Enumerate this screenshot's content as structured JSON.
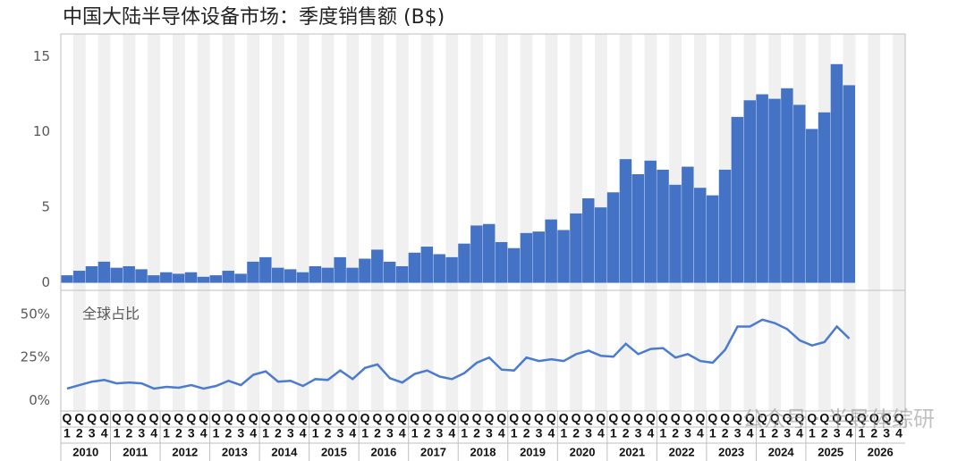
{
  "title": "中国大陆半导体设备市场：季度销售额 (B$)",
  "watermark": "公众号 · 半导体综研",
  "x_axis": {
    "prefix": "Q",
    "quarters": [
      "1",
      "2",
      "3",
      "4"
    ],
    "years": [
      "2010",
      "2011",
      "2012",
      "2013",
      "2014",
      "2015",
      "2016",
      "2017",
      "2018",
      "2019",
      "2020",
      "2021",
      "2022",
      "2023",
      "2024",
      "2025",
      "2026"
    ]
  },
  "chart_data": [
    {
      "type": "bar",
      "color": "#4472c4",
      "ylim": [
        -0.5,
        16.5
      ],
      "yticks": [
        0,
        5,
        10,
        15
      ],
      "values": [
        0.5,
        0.8,
        1.1,
        1.4,
        1.0,
        1.1,
        0.9,
        0.5,
        0.7,
        0.6,
        0.7,
        0.4,
        0.5,
        0.8,
        0.6,
        1.4,
        1.7,
        1.0,
        0.9,
        0.7,
        1.1,
        1.0,
        1.7,
        1.0,
        1.6,
        2.2,
        1.4,
        1.1,
        2.0,
        2.4,
        1.9,
        1.7,
        2.6,
        3.8,
        3.9,
        2.7,
        2.3,
        3.3,
        3.4,
        4.2,
        3.5,
        4.6,
        5.6,
        5.0,
        6.0,
        8.2,
        7.2,
        8.1,
        7.5,
        6.5,
        7.7,
        6.3,
        5.8,
        7.5,
        11.0,
        12.1,
        12.5,
        12.2,
        12.9,
        11.8,
        10.2,
        11.3,
        14.5,
        13.1,
        null,
        null,
        null,
        null
      ]
    },
    {
      "type": "line",
      "label": "全球占比",
      "color": "#4a7bd0",
      "ylim": [
        -6,
        64
      ],
      "yticks": [
        {
          "value": 0,
          "label": "0%"
        },
        {
          "value": 25,
          "label": "25%"
        },
        {
          "value": 50,
          "label": "50%"
        }
      ],
      "values": [
        7,
        9,
        11,
        12,
        10,
        10.5,
        10,
        7,
        8,
        7.5,
        9,
        7,
        8.5,
        11.5,
        9,
        15,
        17,
        11,
        11.5,
        8.5,
        12.5,
        12,
        17.5,
        12.5,
        19,
        21,
        13,
        10.5,
        15.5,
        17.5,
        14,
        12.5,
        16,
        22,
        25,
        18,
        17.5,
        25,
        23,
        24,
        23,
        27,
        29,
        26,
        25.5,
        33,
        27,
        30,
        30.5,
        25,
        27,
        23,
        22,
        29.5,
        43,
        43,
        47,
        45,
        41.5,
        35,
        32,
        34,
        43,
        36,
        null,
        null,
        null,
        null
      ]
    }
  ]
}
